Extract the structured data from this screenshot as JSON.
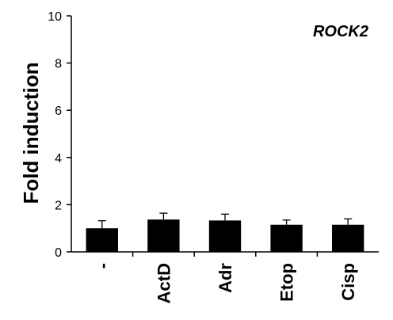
{
  "chart_data": {
    "type": "bar",
    "categories": [
      "-",
      "ActD",
      "Adr",
      "Etop",
      "Cisp"
    ],
    "values": [
      1.0,
      1.37,
      1.33,
      1.15,
      1.15
    ],
    "errors": [
      0.32,
      0.27,
      0.27,
      0.2,
      0.25
    ],
    "ylabel": "Fold induction",
    "xlabel": "",
    "annotation": "ROCK2",
    "ylim": [
      0,
      10
    ],
    "yticks": [
      0,
      2,
      4,
      6,
      8,
      10
    ],
    "bar_color": "#000000",
    "grid": false
  }
}
